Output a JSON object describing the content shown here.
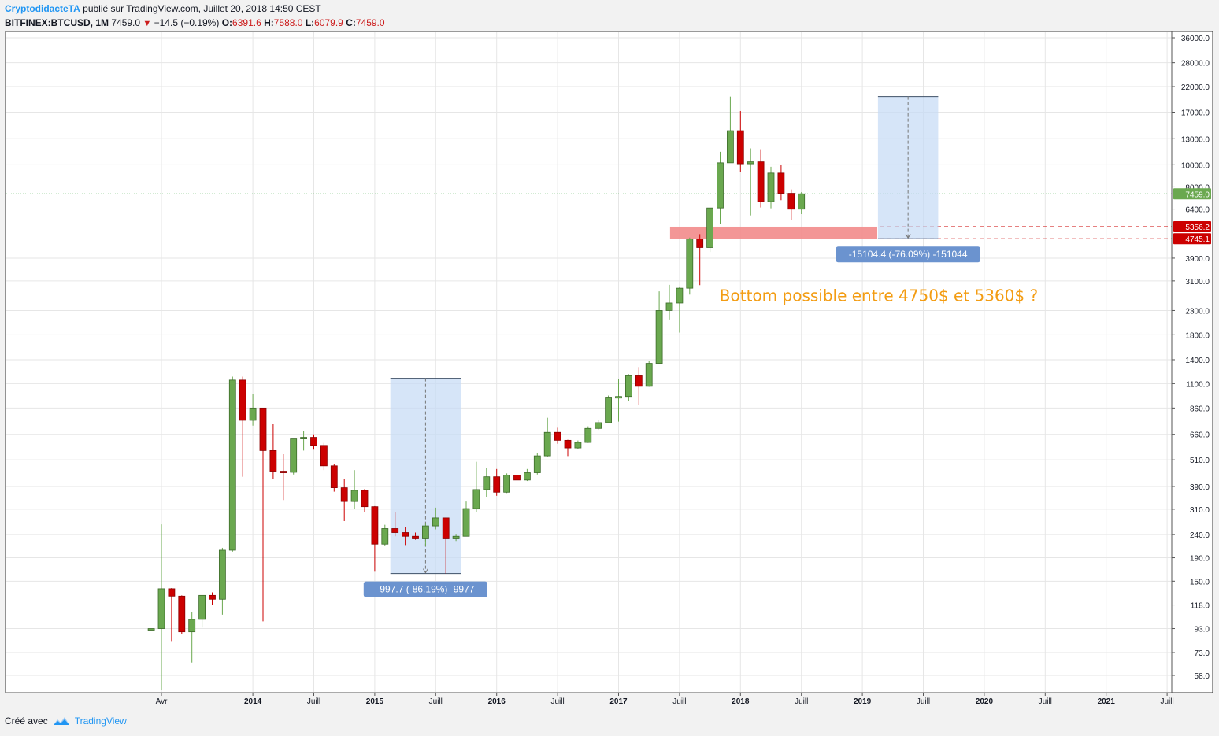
{
  "header": {
    "author": "CryptodidacteTA",
    "published_text": "publié sur TradingView.com, Juillet 20, 2018 14:50 CEST",
    "symbol": "BITFINEX:BTCUSD, 1M",
    "last": "7459.0",
    "change_arrow": "▼",
    "change": "−14.5 (−0.19%)",
    "o_label": "O:",
    "o_value": "6391.6",
    "h_label": "H:",
    "h_value": "7588.0",
    "l_label": "L:",
    "l_value": "6079.9",
    "c_label": "C:",
    "c_value": "7459.0"
  },
  "footer": {
    "created_with": "Créé avec",
    "brand": "TradingView"
  },
  "colors": {
    "up": "#6aa84f",
    "down": "#cc0000",
    "accent": "#2196f3",
    "annotation": "#f39c12",
    "zone": "#f28b8b",
    "measure": "#c5daf5",
    "measure_label": "#6b93cf"
  },
  "chart_data": {
    "type": "candlestick",
    "scale": "log",
    "grid": true,
    "ylim": [
      45,
      42000
    ],
    "y_ticks": [
      "36000.0",
      "28000.0",
      "22000.0",
      "17000.0",
      "13000.0",
      "10000.0",
      "8000.0",
      "6400.0",
      "3900.0",
      "3100.0",
      "2300.0",
      "1800.0",
      "1400.0",
      "1100.0",
      "860.0",
      "660.0",
      "510.0",
      "390.0",
      "310.0",
      "240.0",
      "190.0",
      "150.0",
      "118.0",
      "93.0",
      "73.0",
      "58.0"
    ],
    "x_ticks": [
      "Avr",
      "2014",
      "Juill",
      "2015",
      "Juill",
      "2016",
      "Juill",
      "2017",
      "Juill",
      "2018",
      "Juill",
      "2019",
      "Juill",
      "2020",
      "Juill",
      "2021",
      "Juill"
    ],
    "price_labels": [
      {
        "value": 7459.0,
        "text": "7459.0"
      },
      {
        "value": 5356.2,
        "text": "5356.2"
      },
      {
        "value": 4745.1,
        "text": "4745.1"
      }
    ],
    "candles": [
      {
        "date": "2013-03",
        "o": 93,
        "h": 93,
        "l": 93,
        "c": 93
      },
      {
        "date": "2013-04",
        "o": 93,
        "h": 266,
        "l": 50,
        "c": 139
      },
      {
        "date": "2013-05",
        "o": 139,
        "h": 140,
        "l": 82,
        "c": 129
      },
      {
        "date": "2013-06",
        "o": 129,
        "h": 130,
        "l": 88,
        "c": 90
      },
      {
        "date": "2013-07",
        "o": 90,
        "h": 110,
        "l": 66,
        "c": 102
      },
      {
        "date": "2013-08",
        "o": 102,
        "h": 130,
        "l": 94,
        "c": 130
      },
      {
        "date": "2013-09",
        "o": 130,
        "h": 134,
        "l": 118,
        "c": 125
      },
      {
        "date": "2013-10",
        "o": 125,
        "h": 210,
        "l": 107,
        "c": 205
      },
      {
        "date": "2013-11",
        "o": 205,
        "h": 1180,
        "l": 202,
        "c": 1140
      },
      {
        "date": "2013-12",
        "o": 1140,
        "h": 1180,
        "l": 430,
        "c": 760
      },
      {
        "date": "2014-01",
        "o": 760,
        "h": 990,
        "l": 720,
        "c": 860
      },
      {
        "date": "2014-02",
        "o": 860,
        "h": 860,
        "l": 100,
        "c": 560
      },
      {
        "date": "2014-03",
        "o": 560,
        "h": 730,
        "l": 420,
        "c": 455
      },
      {
        "date": "2014-04",
        "o": 455,
        "h": 540,
        "l": 340,
        "c": 450
      },
      {
        "date": "2014-05",
        "o": 450,
        "h": 630,
        "l": 440,
        "c": 630
      },
      {
        "date": "2014-06",
        "o": 630,
        "h": 680,
        "l": 560,
        "c": 640
      },
      {
        "date": "2014-07",
        "o": 640,
        "h": 660,
        "l": 565,
        "c": 590
      },
      {
        "date": "2014-08",
        "o": 590,
        "h": 605,
        "l": 460,
        "c": 480
      },
      {
        "date": "2014-09",
        "o": 480,
        "h": 490,
        "l": 370,
        "c": 385
      },
      {
        "date": "2014-10",
        "o": 385,
        "h": 420,
        "l": 275,
        "c": 335
      },
      {
        "date": "2014-11",
        "o": 335,
        "h": 460,
        "l": 310,
        "c": 375
      },
      {
        "date": "2014-12",
        "o": 375,
        "h": 380,
        "l": 300,
        "c": 318
      },
      {
        "date": "2015-01",
        "o": 318,
        "h": 320,
        "l": 165,
        "c": 218
      },
      {
        "date": "2015-02",
        "o": 218,
        "h": 265,
        "l": 215,
        "c": 255
      },
      {
        "date": "2015-03",
        "o": 255,
        "h": 300,
        "l": 236,
        "c": 245
      },
      {
        "date": "2015-04",
        "o": 245,
        "h": 260,
        "l": 216,
        "c": 236
      },
      {
        "date": "2015-05",
        "o": 236,
        "h": 245,
        "l": 228,
        "c": 230
      },
      {
        "date": "2015-06",
        "o": 230,
        "h": 268,
        "l": 215,
        "c": 262
      },
      {
        "date": "2015-07",
        "o": 262,
        "h": 315,
        "l": 253,
        "c": 284
      },
      {
        "date": "2015-08",
        "o": 284,
        "h": 285,
        "l": 162,
        "c": 230
      },
      {
        "date": "2015-09",
        "o": 230,
        "h": 240,
        "l": 225,
        "c": 236
      },
      {
        "date": "2015-10",
        "o": 236,
        "h": 335,
        "l": 236,
        "c": 312
      },
      {
        "date": "2015-11",
        "o": 312,
        "h": 500,
        "l": 300,
        "c": 378
      },
      {
        "date": "2015-12",
        "o": 378,
        "h": 470,
        "l": 350,
        "c": 430
      },
      {
        "date": "2016-01",
        "o": 430,
        "h": 465,
        "l": 355,
        "c": 368
      },
      {
        "date": "2016-02",
        "o": 368,
        "h": 445,
        "l": 365,
        "c": 437
      },
      {
        "date": "2016-03",
        "o": 437,
        "h": 440,
        "l": 405,
        "c": 416
      },
      {
        "date": "2016-04",
        "o": 416,
        "h": 465,
        "l": 412,
        "c": 448
      },
      {
        "date": "2016-05",
        "o": 448,
        "h": 545,
        "l": 440,
        "c": 531
      },
      {
        "date": "2016-06",
        "o": 531,
        "h": 780,
        "l": 525,
        "c": 673
      },
      {
        "date": "2016-07",
        "o": 673,
        "h": 705,
        "l": 600,
        "c": 621
      },
      {
        "date": "2016-08",
        "o": 621,
        "h": 625,
        "l": 530,
        "c": 575
      },
      {
        "date": "2016-09",
        "o": 575,
        "h": 620,
        "l": 570,
        "c": 608
      },
      {
        "date": "2016-10",
        "o": 608,
        "h": 715,
        "l": 605,
        "c": 700
      },
      {
        "date": "2016-11",
        "o": 700,
        "h": 760,
        "l": 690,
        "c": 742
      },
      {
        "date": "2016-12",
        "o": 742,
        "h": 975,
        "l": 740,
        "c": 960
      },
      {
        "date": "2017-01",
        "o": 960,
        "h": 1150,
        "l": 750,
        "c": 966
      },
      {
        "date": "2017-02",
        "o": 966,
        "h": 1210,
        "l": 920,
        "c": 1190
      },
      {
        "date": "2017-03",
        "o": 1190,
        "h": 1300,
        "l": 890,
        "c": 1070
      },
      {
        "date": "2017-04",
        "o": 1070,
        "h": 1380,
        "l": 1065,
        "c": 1350
      },
      {
        "date": "2017-05",
        "o": 1350,
        "h": 2790,
        "l": 1345,
        "c": 2300
      },
      {
        "date": "2017-06",
        "o": 2300,
        "h": 2980,
        "l": 2100,
        "c": 2480
      },
      {
        "date": "2017-07",
        "o": 2480,
        "h": 2930,
        "l": 1840,
        "c": 2880
      },
      {
        "date": "2017-08",
        "o": 2880,
        "h": 4800,
        "l": 2700,
        "c": 4730
      },
      {
        "date": "2017-09",
        "o": 4730,
        "h": 4970,
        "l": 2970,
        "c": 4340
      },
      {
        "date": "2017-10",
        "o": 4340,
        "h": 6470,
        "l": 4150,
        "c": 6470
      },
      {
        "date": "2017-11",
        "o": 6470,
        "h": 11400,
        "l": 5500,
        "c": 10200
      },
      {
        "date": "2017-12",
        "o": 10200,
        "h": 19900,
        "l": 10200,
        "c": 14100
      },
      {
        "date": "2018-01",
        "o": 14100,
        "h": 17200,
        "l": 9300,
        "c": 10100
      },
      {
        "date": "2018-02",
        "o": 10100,
        "h": 11800,
        "l": 6000,
        "c": 10300
      },
      {
        "date": "2018-03",
        "o": 10300,
        "h": 11700,
        "l": 6500,
        "c": 6900
      },
      {
        "date": "2018-04",
        "o": 6900,
        "h": 9800,
        "l": 6450,
        "c": 9200
      },
      {
        "date": "2018-05",
        "o": 9200,
        "h": 10000,
        "l": 7000,
        "c": 7500
      },
      {
        "date": "2018-06",
        "o": 7500,
        "h": 7800,
        "l": 5750,
        "c": 6390
      },
      {
        "date": "2018-07",
        "o": 6391.6,
        "h": 7588.0,
        "l": 6079.9,
        "c": 7459.0
      }
    ],
    "zone": {
      "low": 4745.1,
      "high": 5356.2,
      "from": "2017-07",
      "to": "2019-02"
    },
    "measures": [
      {
        "from": "2015-03",
        "to": "2015-09",
        "top": 1160,
        "bottom": 162,
        "label": "-997.7 (-86.19%) -9977"
      },
      {
        "from": "2019-03",
        "to": "2019-08",
        "top": 19900,
        "bottom": 4745.1,
        "label": "-15104.4 (-76.09%) -151044"
      }
    ],
    "annotations": [
      {
        "text": "Bottom possible entre 4750$ et 5360$ ?",
        "date": "2017-08",
        "value": 2650
      }
    ]
  }
}
